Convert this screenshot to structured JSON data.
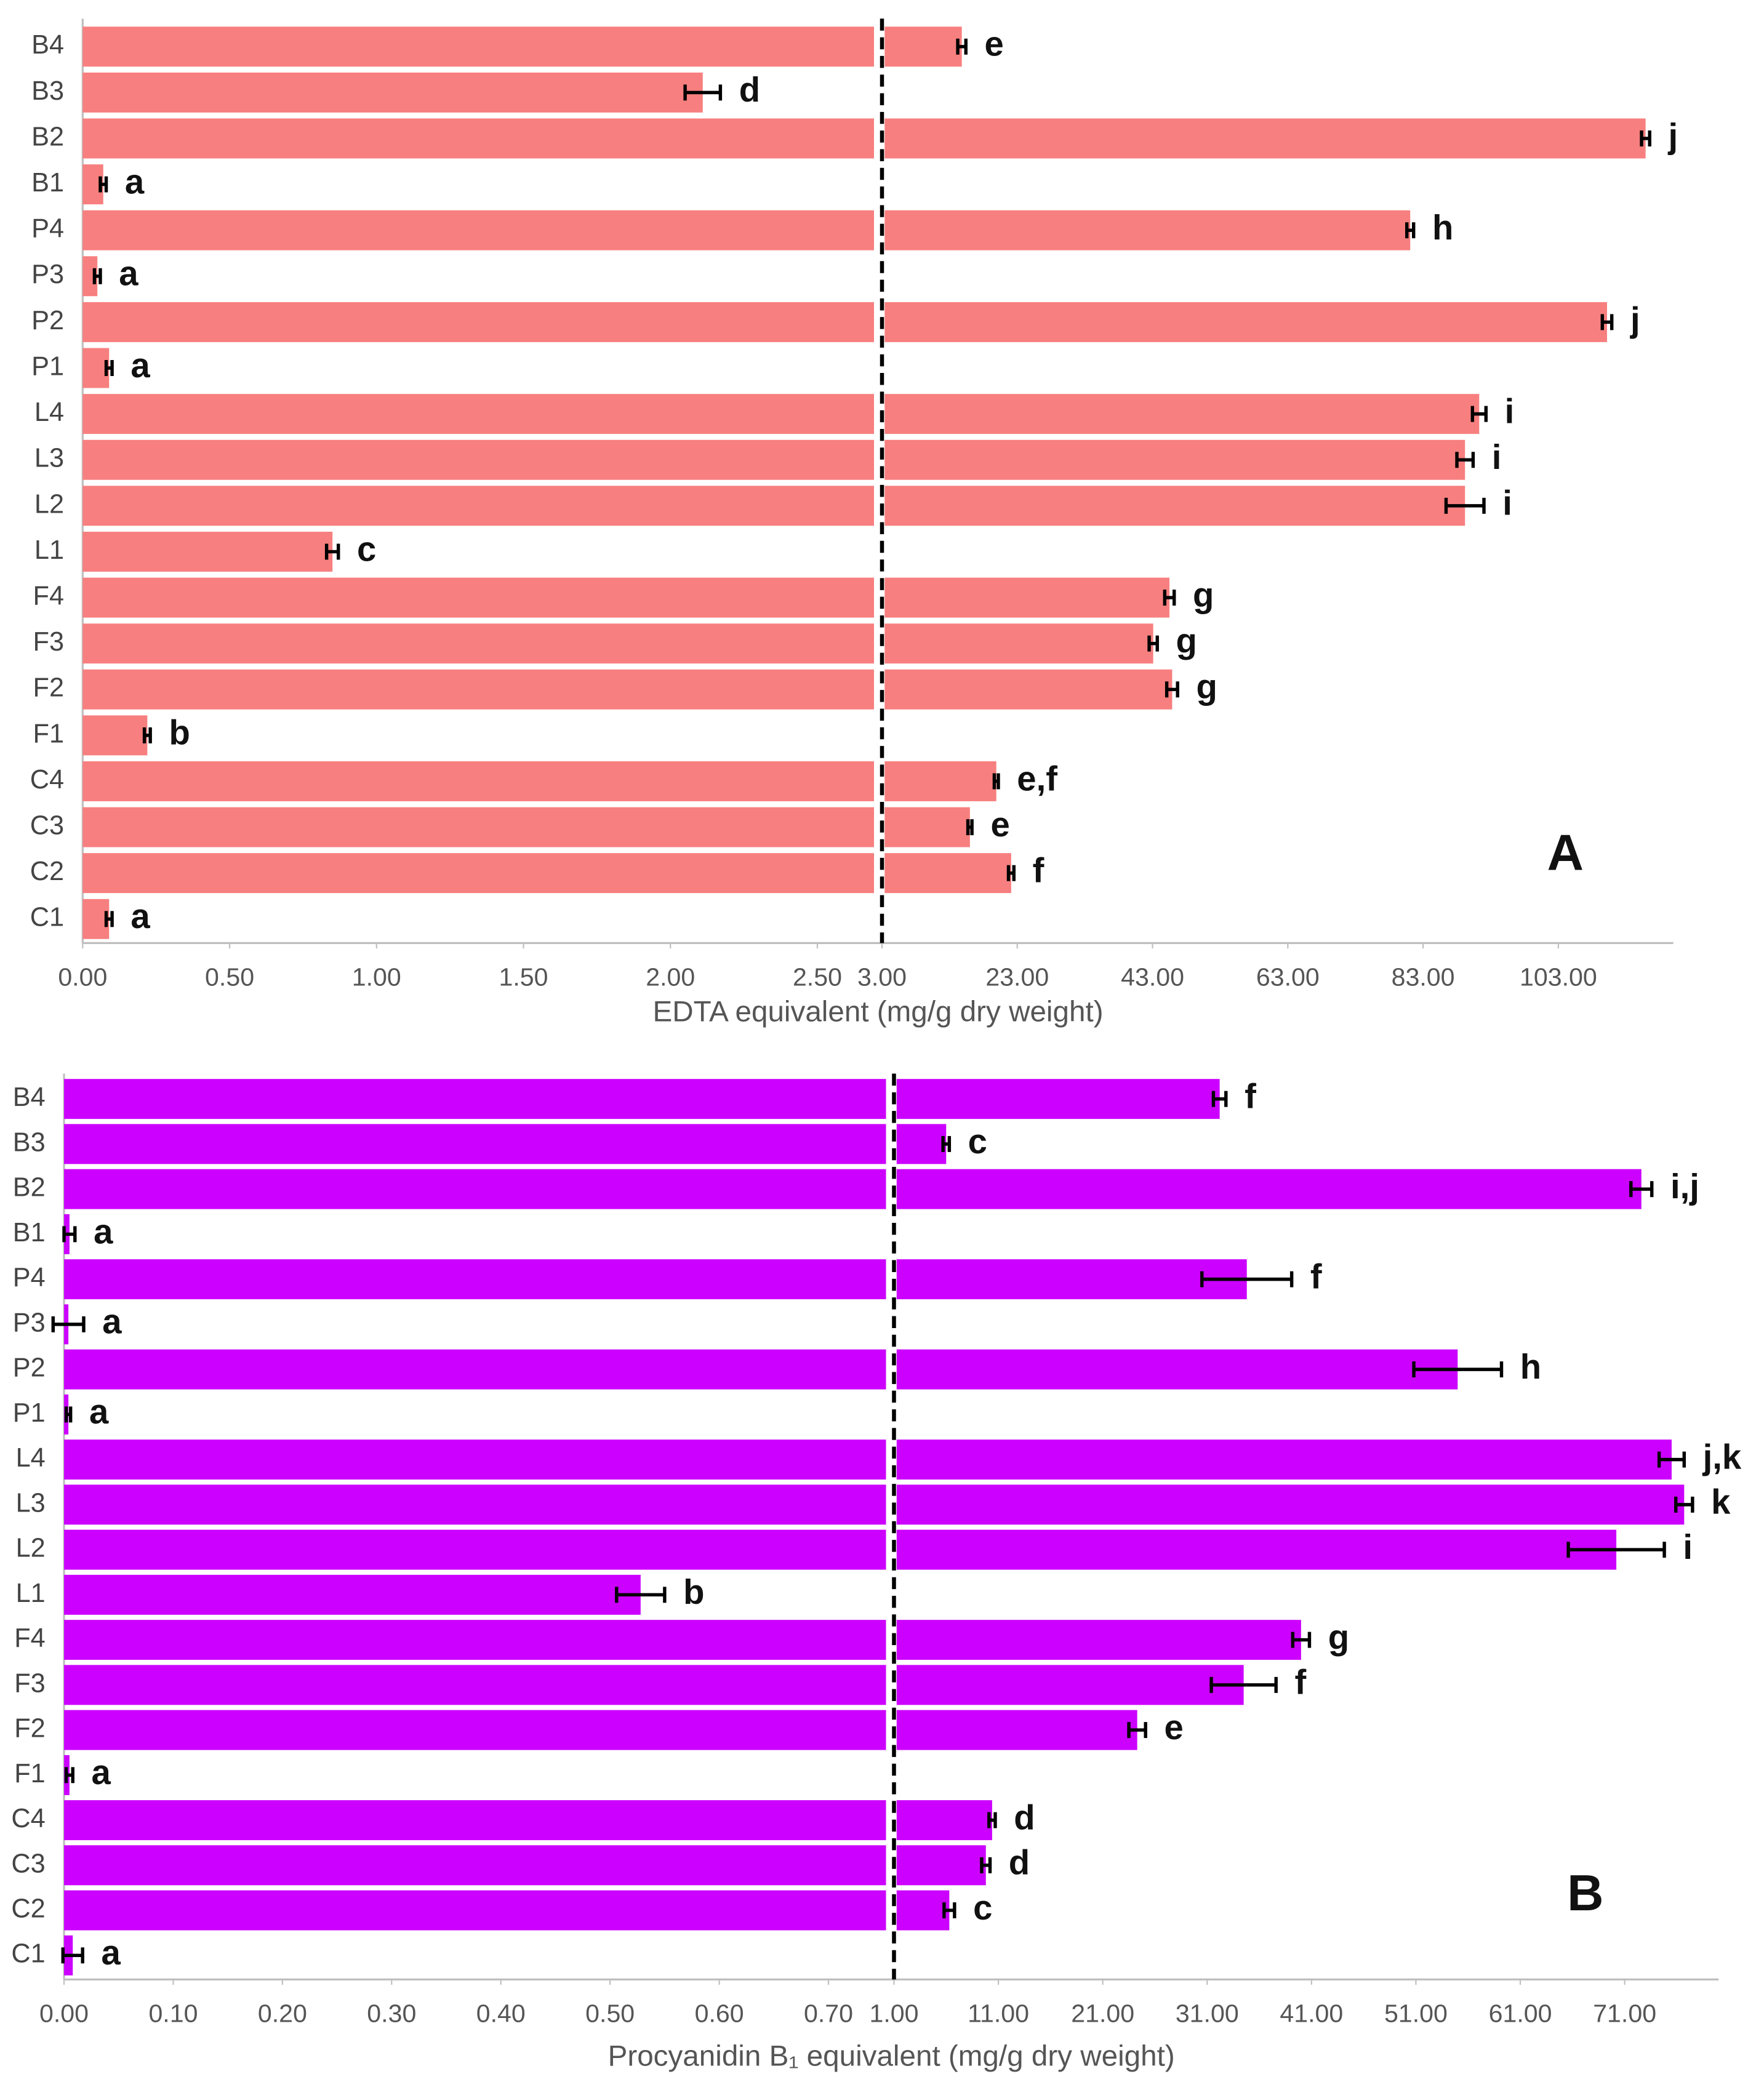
{
  "chart_data": [
    {
      "type": "bar",
      "orientation": "horizontal",
      "panel": "A",
      "color": "#f87f7f",
      "x_label": "EDTA  equivalent (mg/g dry weight)",
      "categories": [
        "B4",
        "B3",
        "B2",
        "B1",
        "P4",
        "P3",
        "P2",
        "P1",
        "L4",
        "L3",
        "L2",
        "L1",
        "F4",
        "F3",
        "F2",
        "F1",
        "C4",
        "C3",
        "C2",
        "C1"
      ],
      "values": [
        14.8,
        2.11,
        115.9,
        0.07,
        81.1,
        0.05,
        110.2,
        0.09,
        91.3,
        89.2,
        89.2,
        0.85,
        45.5,
        43.1,
        45.9,
        0.22,
        19.9,
        16.0,
        22.1,
        0.09
      ],
      "errors": [
        0.6,
        0.06,
        0.6,
        0.01,
        0.5,
        0.01,
        0.7,
        0.01,
        1.0,
        1.2,
        2.8,
        0.02,
        0.7,
        0.6,
        0.8,
        0.01,
        0.3,
        0.3,
        0.4,
        0.01
      ],
      "letters": [
        "e",
        "d",
        "j",
        "a",
        "h",
        "a",
        "j",
        "a",
        "i",
        "i",
        "i",
        "c",
        "g",
        "g",
        "g",
        "b",
        "e,f",
        "e",
        "f",
        "a"
      ],
      "segments": [
        {
          "xlim": [
            0,
            2.72
          ],
          "xticks": [
            {
              "value": 0,
              "label": "0.00"
            },
            {
              "value": 0.5,
              "label": "0.50"
            },
            {
              "value": 1,
              "label": "1.00"
            },
            {
              "value": 1.5,
              "label": "1.50"
            },
            {
              "value": 2,
              "label": "2.00"
            },
            {
              "value": 2.5,
              "label": "2.50"
            }
          ]
        },
        {
          "xlim": [
            3,
            120
          ],
          "xticks": [
            {
              "value": 3,
              "label": "3.00"
            },
            {
              "value": 23,
              "label": "23.00"
            },
            {
              "value": 43,
              "label": "43.00"
            },
            {
              "value": 63,
              "label": "63.00"
            },
            {
              "value": 83,
              "label": "83.00"
            },
            {
              "value": 103,
              "label": "103.00"
            }
          ]
        }
      ]
    },
    {
      "type": "bar",
      "orientation": "horizontal",
      "panel": "B",
      "color": "#cc00ff",
      "x_label": "Procyanidin B₁ equivalent (mg/g dry weight)",
      "categories": [
        "B4",
        "B3",
        "B2",
        "B1",
        "P4",
        "P3",
        "P2",
        "P1",
        "L4",
        "L3",
        "L2",
        "L1",
        "F4",
        "F3",
        "F2",
        "F1",
        "C4",
        "C3",
        "C2",
        "C1"
      ],
      "values": [
        32.2,
        6.0,
        72.6,
        0.005,
        34.8,
        0.004,
        55.0,
        0.004,
        75.5,
        76.7,
        70.2,
        0.528,
        40.0,
        34.5,
        24.3,
        0.005,
        10.4,
        9.8,
        6.3,
        0.008
      ],
      "errors": [
        0.6,
        0.3,
        1.0,
        0.005,
        4.3,
        0.014,
        4.2,
        0.002,
        1.2,
        0.8,
        4.6,
        0.022,
        0.8,
        3.1,
        0.8,
        0.003,
        0.3,
        0.4,
        0.5,
        0.009
      ],
      "letters": [
        "f",
        "c",
        "i,j",
        "a",
        "f",
        "a",
        "h",
        "a",
        "j,k",
        "k",
        "i",
        "b",
        "g",
        "f",
        "e",
        "a",
        "d",
        "d",
        "c",
        "a"
      ],
      "segments": [
        {
          "xlim": [
            0,
            0.76
          ],
          "xticks": [
            {
              "value": 0,
              "label": "0.00"
            },
            {
              "value": 0.1,
              "label": "0.10"
            },
            {
              "value": 0.2,
              "label": "0.20"
            },
            {
              "value": 0.3,
              "label": "0.30"
            },
            {
              "value": 0.4,
              "label": "0.40"
            },
            {
              "value": 0.5,
              "label": "0.50"
            },
            {
              "value": 0.6,
              "label": "0.60"
            },
            {
              "value": 0.7,
              "label": "0.70"
            }
          ]
        },
        {
          "xlim": [
            1,
            80
          ],
          "xticks": [
            {
              "value": 1,
              "label": "1.00"
            },
            {
              "value": 11,
              "label": "11.00"
            },
            {
              "value": 21,
              "label": "21.00"
            },
            {
              "value": 31,
              "label": "31.00"
            },
            {
              "value": 41,
              "label": "41.00"
            },
            {
              "value": 51,
              "label": "51.00"
            },
            {
              "value": 61,
              "label": "61.00"
            },
            {
              "value": 71,
              "label": "71.00"
            }
          ]
        }
      ]
    }
  ]
}
